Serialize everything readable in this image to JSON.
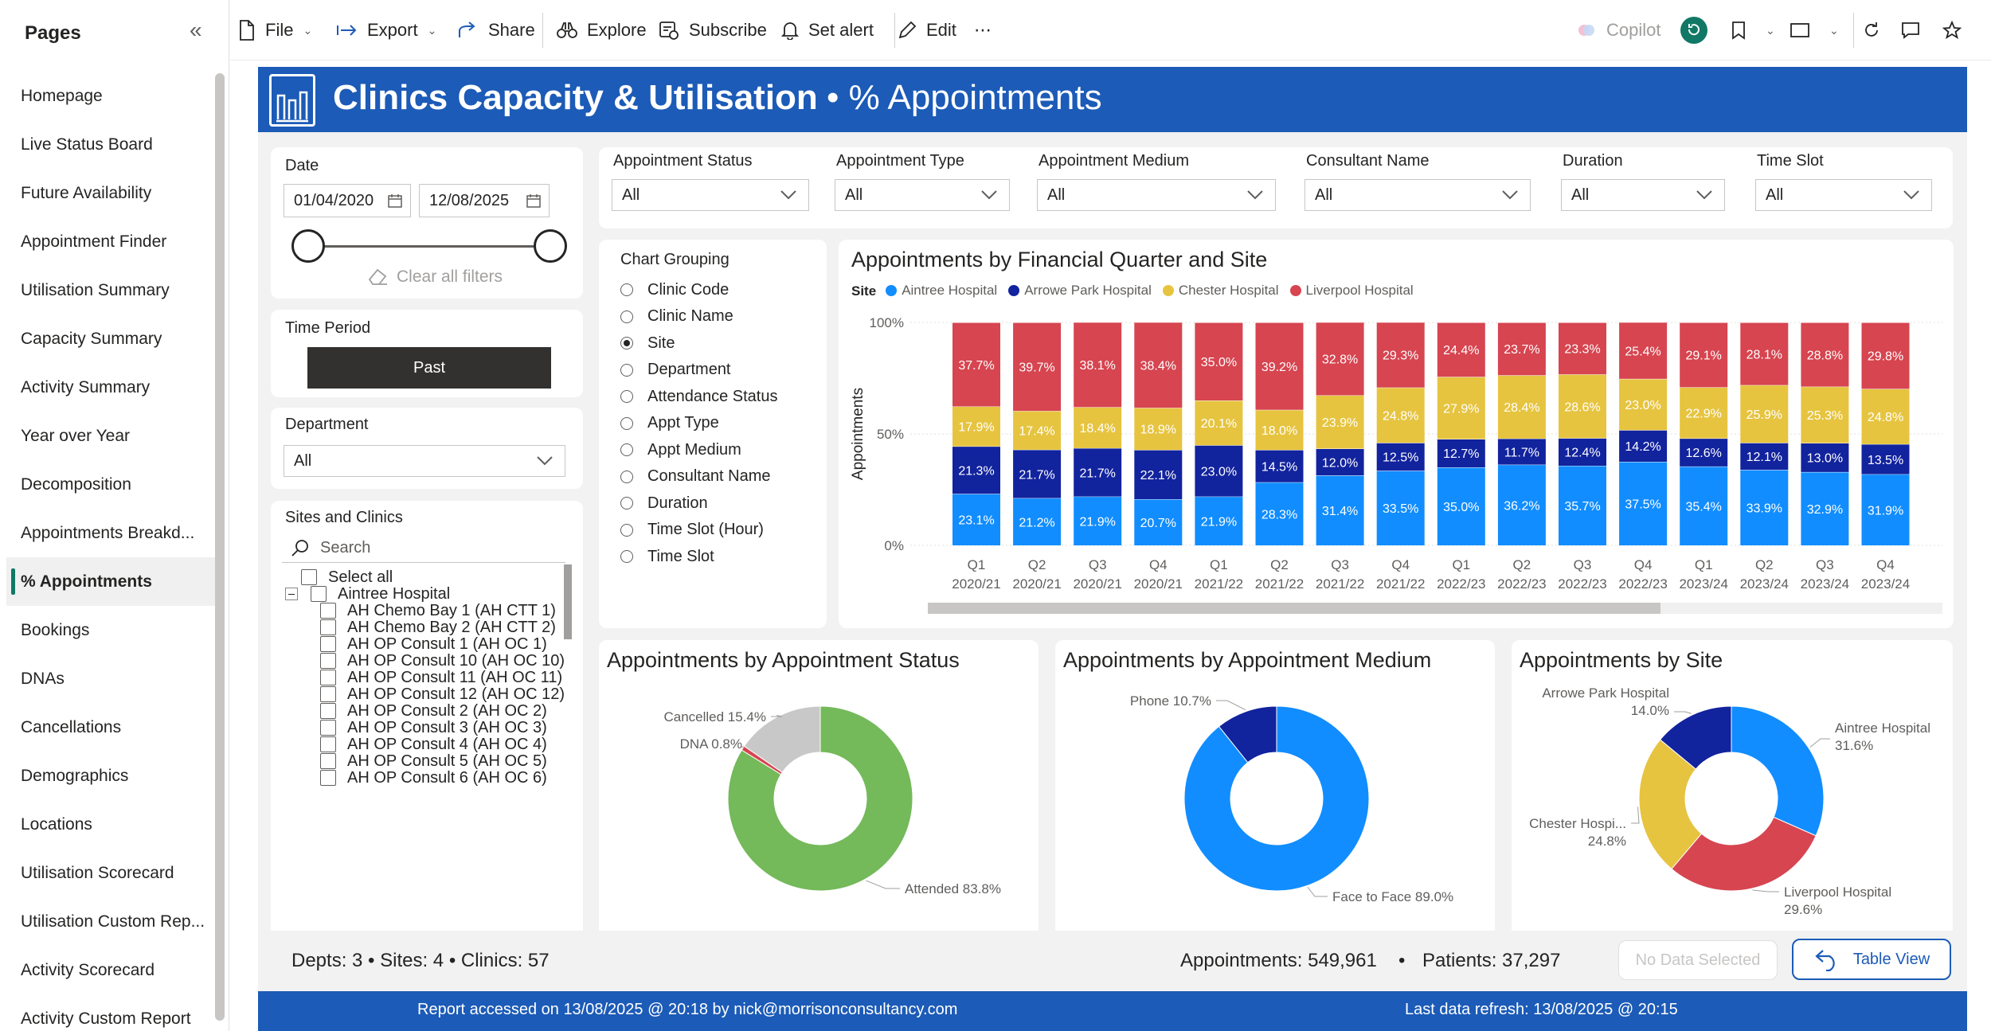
{
  "pages": {
    "header": "Pages",
    "items": [
      "Homepage",
      "Live Status Board",
      "Future Availability",
      "Appointment Finder",
      "Utilisation Summary",
      "Capacity Summary",
      "Activity Summary",
      "Year over Year",
      "Decomposition",
      "Appointments Breakd...",
      "% Appointments",
      "Bookings",
      "DNAs",
      "Cancellations",
      "Demographics",
      "Locations",
      "Utilisation Scorecard",
      "Utilisation Custom Rep...",
      "Activity Scorecard",
      "Activity Custom Report"
    ],
    "active_index": 10
  },
  "toolbar": {
    "file": "File",
    "export": "Export",
    "share": "Share",
    "explore": "Explore",
    "subscribe": "Subscribe",
    "set_alert": "Set alert",
    "edit": "Edit",
    "more": "⋯",
    "copilot": "Copilot"
  },
  "header": {
    "title": "Clinics Capacity & Utilisation",
    "subtitle": "• % Appointments"
  },
  "filters": {
    "date_label": "Date",
    "date_from": "01/04/2020",
    "date_to": "12/08/2025",
    "clear_all": "Clear all filters",
    "time_period_label": "Time Period",
    "time_period_value": "Past",
    "department_label": "Department",
    "department_value": "All",
    "sites_label": "Sites and Clinics",
    "search_placeholder": "Search",
    "select_all": "Select all",
    "site_group": "Aintree Hospital",
    "clinics": [
      "AH Chemo Bay 1 (AH CTT 1)",
      "AH Chemo Bay 2 (AH CTT 2)",
      "AH OP Consult 1 (AH OC 1)",
      "AH OP Consult 10 (AH OC 10)",
      "AH OP Consult 11 (AH OC 11)",
      "AH OP Consult 12 (AH OC 12)",
      "AH OP Consult 2 (AH OC 2)",
      "AH OP Consult 3 (AH OC 3)",
      "AH OP Consult 4 (AH OC 4)",
      "AH OP Consult 5 (AH OC 5)",
      "AH OP Consult 6 (AH OC 6)"
    ]
  },
  "top_filters": [
    {
      "label": "Appointment Status",
      "value": "All"
    },
    {
      "label": "Appointment Type",
      "value": "All"
    },
    {
      "label": "Appointment Medium",
      "value": "All"
    },
    {
      "label": "Consultant Name",
      "value": "All"
    },
    {
      "label": "Duration",
      "value": "All"
    },
    {
      "label": "Time Slot",
      "value": "All"
    }
  ],
  "chart_grouping": {
    "label": "Chart Grouping",
    "options": [
      "Clinic Code",
      "Clinic Name",
      "Site",
      "Department",
      "Attendance Status",
      "Appt Type",
      "Appt Medium",
      "Consultant Name",
      "Duration",
      "Time Slot (Hour)",
      "Time Slot"
    ],
    "selected_index": 2
  },
  "colors": {
    "aintree": "#118dff",
    "arrowe": "#12239e",
    "chester": "#e6c440",
    "liverpool": "#d64550",
    "attended": "#74b95a",
    "dna": "#d64550",
    "cancelled": "#c8c8c8",
    "brand": "#1c5bb7"
  },
  "chart_data": [
    {
      "type": "bar",
      "stacked": "100%",
      "title": "Appointments by Financial Quarter and Site",
      "legend_title": "Site",
      "ylabel": "Appointments",
      "y_ticks": [
        "100%",
        "50%",
        "0%"
      ],
      "categories": [
        "Q1\n2020/21",
        "Q2\n2020/21",
        "Q3\n2020/21",
        "Q4\n2020/21",
        "Q1\n2021/22",
        "Q2\n2021/22",
        "Q3\n2021/22",
        "Q4\n2021/22",
        "Q1\n2022/23",
        "Q2\n2022/23",
        "Q3\n2022/23",
        "Q4\n2022/23",
        "Q1\n2023/24",
        "Q2\n2023/24",
        "Q3\n2023/24",
        "Q4\n2023/24"
      ],
      "series": [
        {
          "name": "Aintree Hospital",
          "values": [
            23.1,
            21.2,
            21.9,
            20.7,
            21.9,
            28.3,
            31.4,
            33.5,
            35.0,
            36.2,
            35.7,
            37.5,
            35.4,
            33.9,
            32.9,
            31.9
          ]
        },
        {
          "name": "Arrowe Park Hospital",
          "values": [
            21.3,
            21.7,
            21.7,
            22.1,
            23.0,
            14.5,
            12.0,
            12.5,
            12.7,
            11.7,
            12.4,
            14.2,
            12.6,
            12.1,
            13.0,
            13.5
          ]
        },
        {
          "name": "Chester Hospital",
          "values": [
            17.9,
            17.4,
            18.4,
            18.9,
            20.1,
            18.0,
            23.9,
            24.8,
            27.9,
            28.4,
            28.6,
            23.0,
            22.9,
            25.9,
            25.3,
            24.8
          ]
        },
        {
          "name": "Liverpool Hospital",
          "values": [
            37.7,
            39.7,
            38.1,
            38.4,
            35.0,
            39.2,
            32.8,
            29.3,
            24.4,
            23.7,
            23.3,
            25.4,
            29.1,
            28.1,
            28.8,
            29.8
          ]
        }
      ]
    },
    {
      "type": "pie",
      "donut": true,
      "title": "Appointments by Appointment Status",
      "slices": [
        {
          "label": "Attended",
          "value": 83.8
        },
        {
          "label": "DNA",
          "value": 0.8
        },
        {
          "label": "Cancelled",
          "value": 15.4
        }
      ]
    },
    {
      "type": "pie",
      "donut": true,
      "title": "Appointments by Appointment Medium",
      "slices": [
        {
          "label": "Face to Face",
          "value": 89.0
        },
        {
          "label": "Phone",
          "value": 10.7
        }
      ]
    },
    {
      "type": "pie",
      "donut": true,
      "title": "Appointments by Site",
      "slices": [
        {
          "label": "Aintree Hospital",
          "value": 31.6
        },
        {
          "label": "Liverpool Hospital",
          "value": 29.6
        },
        {
          "label": "Chester Hospi...",
          "value": 24.8
        },
        {
          "label": "Arrowe Park Hospital",
          "value": 14.0
        }
      ]
    }
  ],
  "summary": {
    "counts": "Depts: 3  •  Sites: 4  •  Clinics: 57",
    "appointments": "Appointments: 549,961",
    "patients": "Patients: 37,297",
    "no_data": "No Data Selected",
    "table_view": "Table View"
  },
  "footer": {
    "accessed": "Report accessed on 13/08/2025 @ 20:18 by nick@morrisonconsultancy.com",
    "refresh": "Last data refresh: 13/08/2025 @ 20:15"
  }
}
